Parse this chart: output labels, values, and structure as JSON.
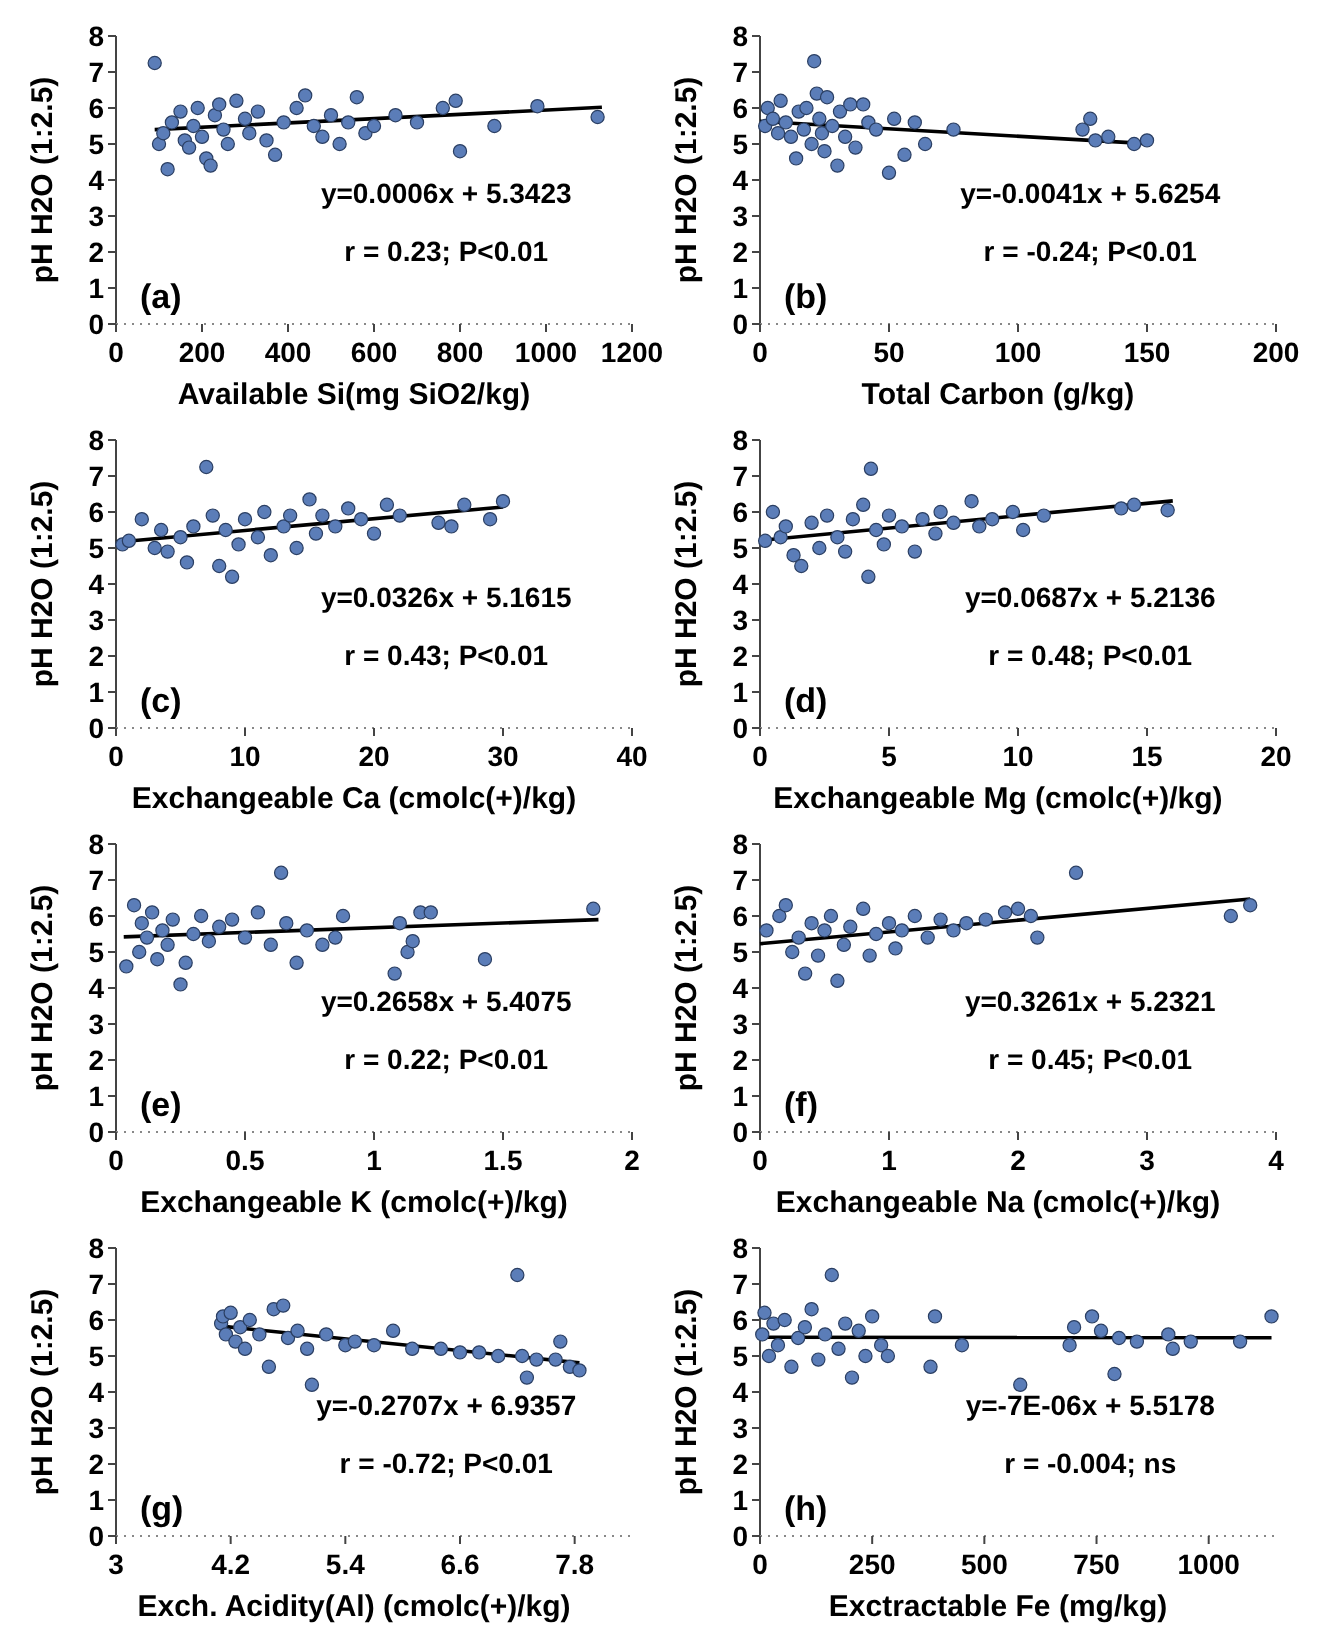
{
  "chart_data": [
    {
      "type": "scatter",
      "xlabel": "Available Si(mg SiO2/kg)",
      "ylabel": "pH H2O (1:2.5)",
      "xlim": [
        0,
        1200
      ],
      "xticks": [
        0,
        200,
        400,
        600,
        800,
        1000,
        1200
      ],
      "ylim": [
        0,
        8
      ],
      "yticks": [
        0,
        1,
        2,
        3,
        4,
        5,
        6,
        7,
        8
      ],
      "marker": "circle",
      "annotations": [
        "(a)",
        "y=0.0006x + 5.3423",
        "r = 0.23; P<0.01"
      ],
      "series": [
        {
          "color": "#5b7db8",
          "x": [
            90,
            100,
            110,
            120,
            130,
            150,
            160,
            170,
            180,
            190,
            200,
            210,
            220,
            230,
            240,
            250,
            260,
            280,
            300,
            310,
            330,
            350,
            370,
            390,
            420,
            440,
            460,
            480,
            500,
            520,
            540,
            560,
            580,
            600,
            650,
            700,
            760,
            790,
            800,
            880,
            980,
            1120
          ],
          "values": [
            7.25,
            5.0,
            5.3,
            4.3,
            5.6,
            5.9,
            5.1,
            4.9,
            5.5,
            6.0,
            5.2,
            4.6,
            4.4,
            5.8,
            6.1,
            5.4,
            5.0,
            6.2,
            5.7,
            5.3,
            5.9,
            5.1,
            4.7,
            5.6,
            6.0,
            6.35,
            5.5,
            5.2,
            5.8,
            5.0,
            5.6,
            6.3,
            5.3,
            5.5,
            5.8,
            5.6,
            6.0,
            6.2,
            4.8,
            5.5,
            6.05,
            5.75
          ]
        },
        {
          "type": "line",
          "marker": "none",
          "color": "#000000",
          "x": [
            90,
            1130
          ],
          "values": [
            5.4,
            6.02
          ]
        }
      ]
    },
    {
      "type": "scatter",
      "xlabel": "Total Carbon (g/kg)",
      "ylabel": "pH H2O (1:2.5)",
      "xlim": [
        0,
        200
      ],
      "xticks": [
        0,
        50,
        100,
        150,
        200
      ],
      "ylim": [
        0,
        8
      ],
      "yticks": [
        0,
        1,
        2,
        3,
        4,
        5,
        6,
        7,
        8
      ],
      "marker": "circle",
      "annotations": [
        "(b)",
        "y=-0.0041x + 5.6254",
        "r = -0.24; P<0.01"
      ],
      "series": [
        {
          "color": "#5b7db8",
          "x": [
            2,
            3,
            5,
            7,
            8,
            10,
            12,
            14,
            15,
            17,
            18,
            20,
            21,
            22,
            23,
            24,
            25,
            26,
            28,
            30,
            31,
            33,
            35,
            37,
            40,
            42,
            45,
            50,
            52,
            56,
            60,
            64,
            75,
            125,
            128,
            130,
            135,
            145,
            150
          ],
          "values": [
            5.5,
            6.0,
            5.7,
            5.3,
            6.2,
            5.6,
            5.2,
            4.6,
            5.9,
            5.4,
            6.0,
            5.0,
            7.3,
            6.4,
            5.7,
            5.3,
            4.8,
            6.3,
            5.5,
            4.4,
            5.9,
            5.2,
            6.1,
            4.9,
            6.1,
            5.6,
            5.4,
            4.2,
            5.7,
            4.7,
            5.6,
            5.0,
            5.4,
            5.4,
            5.7,
            5.1,
            5.2,
            5.0,
            5.1
          ]
        },
        {
          "type": "line",
          "marker": "none",
          "color": "#000000",
          "x": [
            0,
            150
          ],
          "values": [
            5.63,
            5.01
          ]
        }
      ]
    },
    {
      "type": "scatter",
      "xlabel": "Exchangeable Ca (cmolc(+)/kg)",
      "ylabel": "pH H2O (1:2.5)",
      "xlim": [
        0,
        40
      ],
      "xticks": [
        0,
        10,
        20,
        30,
        40
      ],
      "ylim": [
        0,
        8
      ],
      "yticks": [
        0,
        1,
        2,
        3,
        4,
        5,
        6,
        7,
        8
      ],
      "marker": "circle",
      "annotations": [
        "(c)",
        "y=0.0326x + 5.1615",
        "r = 0.43; P<0.01"
      ],
      "series": [
        {
          "color": "#5b7db8",
          "x": [
            0.5,
            1,
            2,
            3,
            3.5,
            4,
            5,
            5.5,
            6,
            7,
            7.5,
            8,
            8.5,
            9,
            9.5,
            10,
            11,
            11.5,
            12,
            13,
            13.5,
            14,
            15,
            15.5,
            16,
            17,
            18,
            19,
            20,
            21,
            22,
            25,
            26,
            27,
            29,
            30
          ],
          "values": [
            5.1,
            5.2,
            5.8,
            5.0,
            5.5,
            4.9,
            5.3,
            4.6,
            5.6,
            7.25,
            5.9,
            4.5,
            5.5,
            4.2,
            5.1,
            5.8,
            5.3,
            6.0,
            4.8,
            5.6,
            5.9,
            5.0,
            6.35,
            5.4,
            5.9,
            5.6,
            6.1,
            5.8,
            5.4,
            6.2,
            5.9,
            5.7,
            5.6,
            6.2,
            5.8,
            6.3
          ]
        },
        {
          "type": "line",
          "marker": "none",
          "color": "#000000",
          "x": [
            0,
            30
          ],
          "values": [
            5.16,
            6.14
          ]
        }
      ]
    },
    {
      "type": "scatter",
      "xlabel": "Exchangeable Mg (cmolc(+)/kg)",
      "ylabel": "pH H2O (1:2.5)",
      "xlim": [
        0,
        20
      ],
      "xticks": [
        0,
        5,
        10,
        15,
        20
      ],
      "ylim": [
        0,
        8
      ],
      "yticks": [
        0,
        1,
        2,
        3,
        4,
        5,
        6,
        7,
        8
      ],
      "marker": "circle",
      "annotations": [
        "(d)",
        "y=0.0687x + 5.2136",
        "r = 0.48; P<0.01"
      ],
      "series": [
        {
          "color": "#5b7db8",
          "x": [
            0.2,
            0.5,
            0.8,
            1,
            1.3,
            1.6,
            2,
            2.3,
            2.6,
            3,
            3.3,
            3.6,
            4,
            4.2,
            4.3,
            4.5,
            4.8,
            5,
            5.5,
            6,
            6.3,
            6.8,
            7,
            7.5,
            8.2,
            8.5,
            9,
            9.8,
            10.2,
            11,
            14,
            14.5,
            15.8
          ],
          "values": [
            5.2,
            6.0,
            5.3,
            5.6,
            4.8,
            4.5,
            5.7,
            5.0,
            5.9,
            5.3,
            4.9,
            5.8,
            6.2,
            4.2,
            7.2,
            5.5,
            5.1,
            5.9,
            5.6,
            4.9,
            5.8,
            5.4,
            6.0,
            5.7,
            6.3,
            5.6,
            5.8,
            6.0,
            5.5,
            5.9,
            6.1,
            6.2,
            6.05
          ]
        },
        {
          "type": "line",
          "marker": "none",
          "color": "#000000",
          "x": [
            0,
            16
          ],
          "values": [
            5.21,
            6.31
          ]
        }
      ]
    },
    {
      "type": "scatter",
      "xlabel": "Exchangeable K (cmolc(+)/kg)",
      "ylabel": "pH H2O (1:2.5)",
      "xlim": [
        0,
        2
      ],
      "xticks": [
        0,
        0.5,
        1,
        1.5,
        2
      ],
      "ylim": [
        0,
        8
      ],
      "yticks": [
        0,
        1,
        2,
        3,
        4,
        5,
        6,
        7,
        8
      ],
      "marker": "circle",
      "annotations": [
        "(e)",
        "y=0.2658x + 5.4075",
        "r = 0.22; P<0.01"
      ],
      "series": [
        {
          "color": "#5b7db8",
          "x": [
            0.04,
            0.07,
            0.09,
            0.1,
            0.12,
            0.14,
            0.16,
            0.18,
            0.2,
            0.22,
            0.25,
            0.27,
            0.3,
            0.33,
            0.36,
            0.4,
            0.45,
            0.5,
            0.55,
            0.6,
            0.64,
            0.66,
            0.7,
            0.74,
            0.8,
            0.85,
            0.88,
            1.08,
            1.1,
            1.13,
            1.15,
            1.18,
            1.22,
            1.43,
            1.85
          ],
          "values": [
            4.6,
            6.3,
            5.0,
            5.8,
            5.4,
            6.1,
            4.8,
            5.6,
            5.2,
            5.9,
            4.1,
            4.7,
            5.5,
            6.0,
            5.3,
            5.7,
            5.9,
            5.4,
            6.1,
            5.2,
            7.2,
            5.8,
            4.7,
            5.6,
            5.2,
            5.4,
            6.0,
            4.4,
            5.8,
            5.0,
            5.3,
            6.1,
            6.1,
            4.8,
            6.2
          ]
        },
        {
          "type": "line",
          "marker": "none",
          "color": "#000000",
          "x": [
            0.03,
            1.87
          ],
          "values": [
            5.42,
            5.9
          ]
        }
      ]
    },
    {
      "type": "scatter",
      "xlabel": "Exchangeable Na (cmolc(+)/kg)",
      "ylabel": "pH H2O (1:2.5)",
      "xlim": [
        0,
        4
      ],
      "xticks": [
        0,
        1,
        2,
        3,
        4
      ],
      "ylim": [
        0,
        8
      ],
      "yticks": [
        0,
        1,
        2,
        3,
        4,
        5,
        6,
        7,
        8
      ],
      "marker": "circle",
      "annotations": [
        "(f)",
        "y=0.3261x + 5.2321",
        "r = 0.45; P<0.01"
      ],
      "series": [
        {
          "color": "#5b7db8",
          "x": [
            0.05,
            0.15,
            0.2,
            0.25,
            0.3,
            0.35,
            0.4,
            0.45,
            0.5,
            0.55,
            0.6,
            0.65,
            0.7,
            0.8,
            0.85,
            0.9,
            1.0,
            1.05,
            1.1,
            1.2,
            1.3,
            1.4,
            1.5,
            1.6,
            1.75,
            1.9,
            2.0,
            2.1,
            2.15,
            2.45,
            3.65,
            3.8
          ],
          "values": [
            5.6,
            6.0,
            6.3,
            5.0,
            5.4,
            4.4,
            5.8,
            4.9,
            5.6,
            6.0,
            4.2,
            5.2,
            5.7,
            6.2,
            4.9,
            5.5,
            5.8,
            5.1,
            5.6,
            6.0,
            5.4,
            5.9,
            5.6,
            5.8,
            5.9,
            6.1,
            6.2,
            6.0,
            5.4,
            7.2,
            6.0,
            6.3
          ]
        },
        {
          "type": "line",
          "marker": "none",
          "color": "#000000",
          "x": [
            0,
            3.8
          ],
          "values": [
            5.23,
            6.47
          ]
        }
      ]
    },
    {
      "type": "scatter",
      "xlabel": "Exch. Acidity(Al) (cmolc(+)/kg)",
      "ylabel": "pH H2O (1:2.5)",
      "xlim": [
        3,
        8.4
      ],
      "xticks": [
        3,
        4.2,
        5.4,
        6.6,
        7.8
      ],
      "ylim": [
        0,
        8
      ],
      "yticks": [
        0,
        1,
        2,
        3,
        4,
        5,
        6,
        7,
        8
      ],
      "marker": "circle",
      "annotations": [
        "(g)",
        "y=-0.2707x + 6.9357",
        "r = -0.72; P<0.01"
      ],
      "series": [
        {
          "color": "#5b7db8",
          "x": [
            4.1,
            4.12,
            4.15,
            4.2,
            4.25,
            4.3,
            4.35,
            4.4,
            4.5,
            4.6,
            4.65,
            4.75,
            4.8,
            4.9,
            5.0,
            5.05,
            5.2,
            5.4,
            5.5,
            5.7,
            5.9,
            6.1,
            6.4,
            6.6,
            6.8,
            7.0,
            7.2,
            7.25,
            7.3,
            7.4,
            7.6,
            7.65,
            7.75,
            7.85
          ],
          "values": [
            5.9,
            6.1,
            5.6,
            6.2,
            5.4,
            5.8,
            5.2,
            6.0,
            5.6,
            4.7,
            6.3,
            6.4,
            5.5,
            5.7,
            5.2,
            4.2,
            5.6,
            5.3,
            5.4,
            5.3,
            5.7,
            5.2,
            5.2,
            5.1,
            5.1,
            5.0,
            7.25,
            5.0,
            4.4,
            4.9,
            4.9,
            5.4,
            4.7,
            4.6
          ]
        },
        {
          "type": "line",
          "marker": "none",
          "color": "#000000",
          "x": [
            4.1,
            7.85
          ],
          "values": [
            5.83,
            4.81
          ]
        }
      ]
    },
    {
      "type": "scatter",
      "xlabel": "Exctractable Fe (mg/kg)",
      "ylabel": "pH H2O (1:2.5)",
      "xlim": [
        0,
        1150
      ],
      "xticks": [
        0,
        250,
        500,
        750,
        1000
      ],
      "ylim": [
        0,
        8
      ],
      "yticks": [
        0,
        1,
        2,
        3,
        4,
        5,
        6,
        7,
        8
      ],
      "marker": "circle",
      "annotations": [
        "(h)",
        "y=-7E-06x + 5.5178",
        "r = -0.004; ns"
      ],
      "series": [
        {
          "color": "#5b7db8",
          "x": [
            5,
            10,
            20,
            30,
            40,
            55,
            70,
            85,
            100,
            115,
            130,
            145,
            160,
            175,
            190,
            205,
            220,
            235,
            250,
            270,
            285,
            380,
            390,
            450,
            580,
            690,
            700,
            740,
            760,
            790,
            800,
            840,
            910,
            920,
            960,
            1070,
            1140
          ],
          "values": [
            5.6,
            6.2,
            5.0,
            5.9,
            5.3,
            6.0,
            4.7,
            5.5,
            5.8,
            6.3,
            4.9,
            5.6,
            7.25,
            5.2,
            5.9,
            4.4,
            5.7,
            5.0,
            6.1,
            5.3,
            5.0,
            4.7,
            6.1,
            5.3,
            4.2,
            5.3,
            5.8,
            6.1,
            5.7,
            4.5,
            5.5,
            5.4,
            5.6,
            5.2,
            5.4,
            5.4,
            6.1
          ]
        },
        {
          "type": "line",
          "marker": "none",
          "color": "#000000",
          "x": [
            0,
            1140
          ],
          "values": [
            5.52,
            5.51
          ]
        }
      ]
    }
  ]
}
